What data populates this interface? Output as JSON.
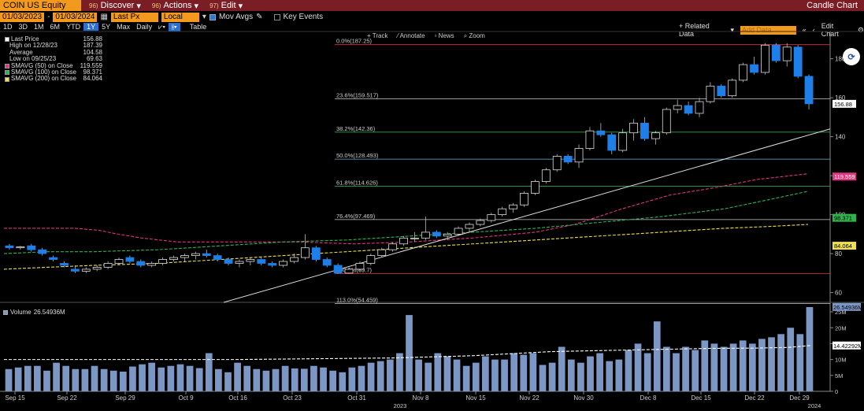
{
  "header": {
    "ticker": "COIN US Equity",
    "menus": [
      {
        "num": "96)",
        "label": "Discover"
      },
      {
        "num": "96)",
        "label": "Actions"
      },
      {
        "num": "97)",
        "label": "Edit"
      }
    ],
    "title": "Candle Chart"
  },
  "controls": {
    "start_date": "01/03/2023",
    "end_date": "01/03/2024",
    "field": "Last Px",
    "currency": "Local CCY",
    "mov_avgs": "Mov Avgs",
    "key_events": "Key Events"
  },
  "periods": [
    "1D",
    "3D",
    "1M",
    "6M",
    "YTD",
    "1Y",
    "5Y",
    "Max"
  ],
  "selected_period": "1Y",
  "frequency": "Daily",
  "table_label": "Table",
  "related_data": "+ Related Data",
  "add_data_placeholder": "Add Data",
  "edit_chart": "Edit Chart",
  "tools": [
    "Track",
    "Annotate",
    "News",
    "Zoom"
  ],
  "legend": [
    {
      "label": "Last Price",
      "value": "156.88",
      "color": "#ffffff"
    },
    {
      "label": "High on 12/28/23",
      "value": "187.39",
      "color": ""
    },
    {
      "label": "Average",
      "value": "104.58",
      "color": ""
    },
    {
      "label": "Low on 09/25/23",
      "value": "69.63",
      "color": ""
    },
    {
      "label": "SMAVG (50)  on Close",
      "value": "119.559",
      "color": "#e0357f"
    },
    {
      "label": "SMAVG (100)  on Close",
      "value": "98.371",
      "color": "#2fb34a"
    },
    {
      "label": "SMAVG (200)  on Close",
      "value": "84.064",
      "color": "#f0e050"
    }
  ],
  "volume_legend": {
    "label": "Volume",
    "value": "26.54936M"
  },
  "chart_data": {
    "type": "candlestick",
    "ylim": [
      55,
      194
    ],
    "yticks": [
      60,
      80,
      100,
      120,
      140,
      160,
      180
    ],
    "fib_levels": [
      {
        "label": "0.0%(187.25)",
        "value": 187.25,
        "color": "#d9343d"
      },
      {
        "label": "23.6%(159.517)",
        "value": 159.517,
        "color": "#cccccc"
      },
      {
        "label": "38.2%(142.36)",
        "value": 142.36,
        "color": "#2fa84a"
      },
      {
        "label": "50.0%(128.493)",
        "value": 128.493,
        "color": "#6fb3d8"
      },
      {
        "label": "61.8%(114.626)",
        "value": 114.626,
        "color": "#2fa84a"
      },
      {
        "label": "76.4%(97.469)",
        "value": 97.469,
        "color": "#cccccc"
      },
      {
        "label": "100.0%(69.7)",
        "value": 69.7,
        "color": "#d9343d"
      },
      {
        "label": "113.0%(54.459)",
        "value": 54.459,
        "color": "#cccccc"
      }
    ],
    "price_tags": [
      {
        "value": 156.88,
        "label": "156.88",
        "bg": "#ffffff",
        "fg": "#000000"
      },
      {
        "value": 119.559,
        "label": "119.559",
        "bg": "#e0357f",
        "fg": "#ffffff"
      },
      {
        "value": 98.371,
        "label": "98.371",
        "bg": "#2fb34a",
        "fg": "#000000"
      },
      {
        "value": 84.064,
        "label": "84.064",
        "bg": "#f0e050",
        "fg": "#000000"
      }
    ],
    "candles": [
      [
        84,
        85,
        82,
        83
      ],
      [
        83,
        84,
        82,
        83.5
      ],
      [
        84,
        85,
        81,
        82
      ],
      [
        82,
        83,
        79,
        80
      ],
      [
        78,
        79,
        76,
        77
      ],
      [
        75,
        76,
        73,
        74
      ],
      [
        72,
        74,
        70,
        71
      ],
      [
        71,
        73,
        70,
        72
      ],
      [
        72,
        74,
        71,
        73
      ],
      [
        73,
        76,
        72,
        75
      ],
      [
        75,
        78,
        74,
        77
      ],
      [
        78,
        79,
        75,
        76
      ],
      [
        76,
        77,
        73,
        74
      ],
      [
        74,
        76,
        73,
        75
      ],
      [
        75,
        78,
        74,
        77
      ],
      [
        77,
        79,
        76,
        78
      ],
      [
        78,
        80,
        76,
        79
      ],
      [
        79,
        81,
        77,
        80
      ],
      [
        80,
        82,
        78,
        79
      ],
      [
        79,
        80,
        76,
        77
      ],
      [
        77,
        78,
        74,
        75
      ],
      [
        75,
        77,
        73,
        76
      ],
      [
        76,
        78,
        74,
        77
      ],
      [
        77,
        78,
        74,
        75
      ],
      [
        75,
        76,
        73,
        74
      ],
      [
        74,
        77,
        73,
        76
      ],
      [
        76,
        80,
        75,
        78
      ],
      [
        78,
        90,
        77,
        83
      ],
      [
        83,
        84,
        76,
        77
      ],
      [
        77,
        78,
        73,
        74
      ],
      [
        74,
        75,
        69.6,
        70
      ],
      [
        70,
        73,
        69.7,
        72
      ],
      [
        72,
        76,
        71,
        75
      ],
      [
        75,
        80,
        74,
        79
      ],
      [
        79,
        83,
        78,
        82
      ],
      [
        82,
        86,
        81,
        85
      ],
      [
        85,
        89,
        84,
        88
      ],
      [
        88,
        91,
        86,
        88
      ],
      [
        88,
        99,
        87,
        91
      ],
      [
        91,
        92,
        88,
        89
      ],
      [
        89,
        91,
        87,
        90
      ],
      [
        90,
        94,
        89,
        93
      ],
      [
        93,
        96,
        91,
        95
      ],
      [
        95,
        98,
        94,
        97
      ],
      [
        97,
        101,
        96,
        100
      ],
      [
        100,
        104,
        99,
        103
      ],
      [
        103,
        106,
        101,
        105
      ],
      [
        105,
        112,
        104,
        111
      ],
      [
        111,
        118,
        110,
        117
      ],
      [
        117,
        124,
        116,
        123
      ],
      [
        123,
        131,
        122,
        130
      ],
      [
        130,
        131,
        126,
        127
      ],
      [
        127,
        136,
        124,
        134
      ],
      [
        134,
        145,
        133,
        143
      ],
      [
        143,
        147,
        140,
        141
      ],
      [
        141,
        142,
        131,
        133
      ],
      [
        133,
        144,
        132,
        142
      ],
      [
        142,
        149,
        138,
        147
      ],
      [
        147,
        150,
        138,
        139
      ],
      [
        139,
        143,
        136,
        142
      ],
      [
        142,
        155,
        141,
        154
      ],
      [
        154,
        159,
        152,
        156
      ],
      [
        156,
        158,
        151,
        152
      ],
      [
        152,
        160,
        150,
        158
      ],
      [
        158,
        168,
        157,
        166
      ],
      [
        166,
        167,
        160,
        161
      ],
      [
        161,
        170,
        160,
        169
      ],
      [
        169,
        178,
        168,
        177
      ],
      [
        177,
        181,
        172,
        173
      ],
      [
        173,
        188,
        172,
        187
      ],
      [
        187,
        188,
        178,
        179
      ],
      [
        179,
        188,
        176,
        186
      ],
      [
        186,
        187,
        170,
        171
      ],
      [
        171,
        172,
        154,
        156.88
      ]
    ],
    "sma50": [
      [
        5,
        93
      ],
      [
        30,
        93
      ],
      [
        60,
        93
      ],
      [
        95,
        93
      ],
      [
        125,
        92
      ],
      [
        150,
        90
      ],
      [
        180,
        88
      ],
      [
        225,
        86
      ],
      [
        300,
        86
      ],
      [
        380,
        86
      ],
      [
        450,
        85
      ],
      [
        520,
        86
      ],
      [
        600,
        88
      ],
      [
        680,
        91
      ],
      [
        730,
        95
      ],
      [
        790,
        103
      ],
      [
        850,
        110
      ],
      [
        910,
        114
      ],
      [
        960,
        118
      ],
      [
        1026,
        121
      ]
    ],
    "sma100": [
      [
        5,
        80
      ],
      [
        60,
        81
      ],
      [
        120,
        81
      ],
      [
        200,
        82
      ],
      [
        280,
        84
      ],
      [
        360,
        86
      ],
      [
        440,
        87
      ],
      [
        520,
        89
      ],
      [
        600,
        91
      ],
      [
        680,
        93
      ],
      [
        760,
        96
      ],
      [
        840,
        99
      ],
      [
        920,
        103
      ],
      [
        980,
        108
      ],
      [
        1026,
        112
      ]
    ],
    "sma200": [
      [
        5,
        72
      ],
      [
        60,
        73
      ],
      [
        120,
        74
      ],
      [
        200,
        75
      ],
      [
        280,
        77
      ],
      [
        360,
        79
      ],
      [
        440,
        81
      ],
      [
        520,
        83
      ],
      [
        600,
        85
      ],
      [
        680,
        87
      ],
      [
        760,
        89
      ],
      [
        840,
        91
      ],
      [
        920,
        93
      ],
      [
        980,
        94
      ],
      [
        1026,
        95
      ]
    ],
    "trendline": [
      [
        284,
        55
      ],
      [
        1054,
        144
      ]
    ],
    "x_ticks": [
      "Sep 15",
      "Sep 22",
      "Sep 29",
      "Oct 9",
      "Oct 16",
      "Oct 23",
      "Oct 31",
      "Nov 8",
      "Nov 15",
      "Nov 22",
      "Nov 30",
      "Dec 8",
      "Dec 15",
      "Dec 22",
      "Dec 29"
    ],
    "x_year_labels": [
      "2023",
      "2024"
    ],
    "volume": {
      "ylim": [
        0,
        27
      ],
      "yticks": [
        {
          "v": 0,
          "l": "0"
        },
        {
          "v": 5,
          "l": "5M"
        },
        {
          "v": 10,
          "l": "10M"
        },
        {
          "v": 15,
          "l": "15M"
        },
        {
          "v": 20,
          "l": "20M"
        },
        {
          "v": 25,
          "l": "25M"
        }
      ],
      "values": [
        7,
        7.5,
        8,
        8,
        6.5,
        9,
        8,
        7,
        7,
        8,
        7,
        6.5,
        6.2,
        7.8,
        8.5,
        9,
        7.5,
        8,
        8.5,
        8,
        7.3,
        12,
        7,
        6,
        9,
        8,
        7,
        6.5,
        7,
        8,
        7.2,
        7.1,
        8,
        7.5,
        6.5,
        6,
        7.5,
        8,
        9,
        9.5,
        10,
        12,
        24,
        10,
        9,
        12,
        11,
        10,
        8,
        9,
        11,
        10,
        10,
        12,
        11.5,
        12,
        8.3,
        9,
        14,
        10,
        9,
        11,
        12,
        9.5,
        10,
        13,
        15,
        12,
        22,
        14,
        12,
        14,
        13,
        16,
        15,
        14,
        15,
        16,
        15,
        16.5,
        17,
        18,
        20,
        18,
        26.5
      ],
      "avg": [
        [
          5,
          10
        ],
        [
          100,
          10
        ],
        [
          200,
          10
        ],
        [
          300,
          10
        ],
        [
          420,
          10.3
        ],
        [
          500,
          10.5
        ],
        [
          600,
          11.2
        ],
        [
          700,
          12.5
        ],
        [
          800,
          13
        ],
        [
          900,
          13.5
        ],
        [
          960,
          13.6
        ],
        [
          1000,
          13.8
        ],
        [
          1030,
          14.42
        ]
      ],
      "tags": [
        {
          "value": 26.54936,
          "label": "26.54936M",
          "bg": "#7d97c4",
          "fg": "#000000"
        },
        {
          "value": 14.42292,
          "label": "14.42292M",
          "bg": "#ffffff",
          "fg": "#000000"
        }
      ]
    }
  }
}
